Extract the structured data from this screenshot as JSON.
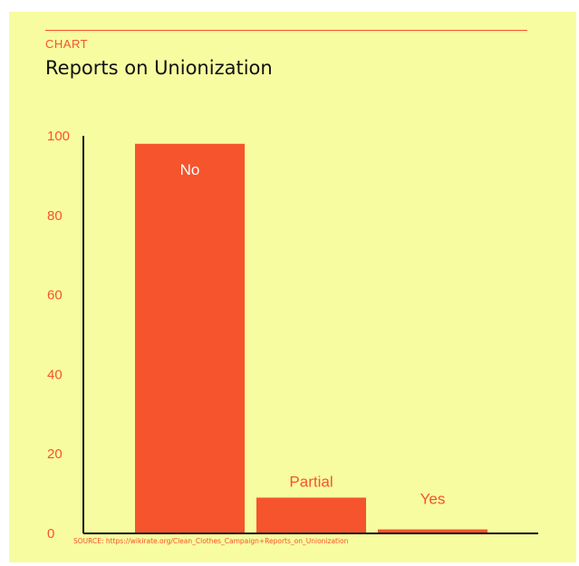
{
  "kicker": "CHART",
  "source": "SOURCE: https://wikirate.org/Clean_Clothes_Campaign+Reports_on_Unionization",
  "colors": {
    "background": "#f7fca0",
    "bar": "#f6542d",
    "axis": "#111111",
    "accent": "#f6542d",
    "label_inside": "#ffffff"
  },
  "chart_data": {
    "type": "bar",
    "title": "Reports on Unionization",
    "categories": [
      "No",
      "Partial",
      "Yes"
    ],
    "values": [
      98,
      9,
      1
    ],
    "ylim": [
      0,
      100
    ],
    "yticks": [
      0,
      20,
      40,
      60,
      80,
      100
    ],
    "xlabel": "",
    "ylabel": "",
    "grid": false,
    "legend": "none"
  }
}
